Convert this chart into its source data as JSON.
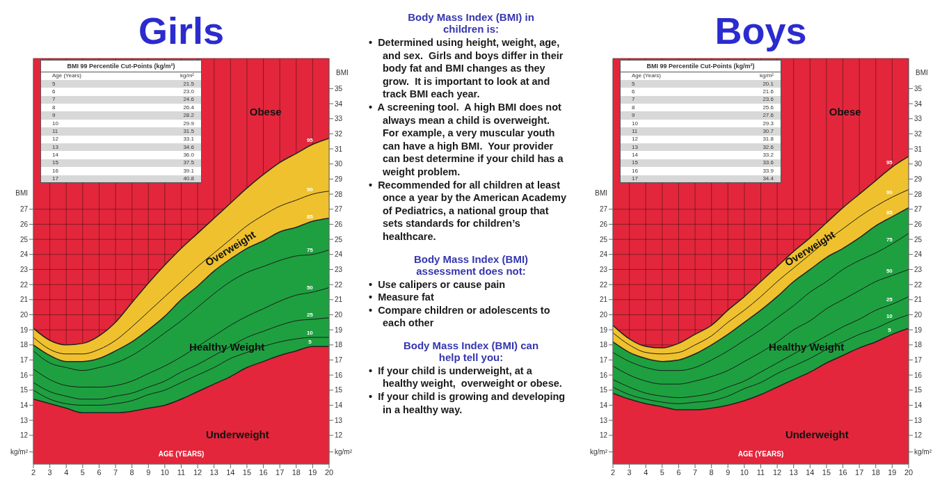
{
  "chart_data": [
    {
      "type": "area",
      "title": "Girls",
      "xlabel": "AGE (YEARS)",
      "ylabel": "BMI",
      "y2label": "BMI",
      "x": [
        2,
        3,
        4,
        5,
        6,
        7,
        8,
        9,
        10,
        11,
        12,
        13,
        14,
        15,
        16,
        17,
        18,
        19,
        20
      ],
      "series": [
        {
          "name": "95",
          "type": "area",
          "color": "#efc12e",
          "values": [
            19.1,
            18.3,
            18.0,
            18.1,
            18.6,
            19.5,
            20.8,
            22.1,
            23.3,
            24.4,
            25.4,
            26.4,
            27.4,
            28.4,
            29.3,
            30.1,
            30.7,
            31.3,
            31.7
          ]
        },
        {
          "name": "90",
          "type": "line",
          "color": "#1b1b1b",
          "values": [
            18.5,
            17.7,
            17.4,
            17.4,
            17.7,
            18.3,
            19.2,
            20.2,
            21.2,
            22.2,
            23.2,
            24.1,
            25.0,
            25.9,
            26.6,
            27.2,
            27.6,
            28.0,
            28.2
          ]
        },
        {
          "name": "85",
          "type": "area",
          "color": "#1ea040",
          "values": [
            18.0,
            17.3,
            16.9,
            16.9,
            17.1,
            17.6,
            18.2,
            19.0,
            19.9,
            21.0,
            21.9,
            22.9,
            23.7,
            24.4,
            24.9,
            25.5,
            25.8,
            26.2,
            26.4
          ]
        },
        {
          "name": "75",
          "type": "line",
          "color": "#1b1b1b",
          "values": [
            17.6,
            16.8,
            16.5,
            16.3,
            16.5,
            16.8,
            17.3,
            18.0,
            18.8,
            19.6,
            20.5,
            21.4,
            22.2,
            22.8,
            23.2,
            23.6,
            23.9,
            24.0,
            24.3
          ]
        },
        {
          "name": "50",
          "type": "line",
          "color": "#1b1b1b",
          "values": [
            16.4,
            15.7,
            15.3,
            15.2,
            15.2,
            15.3,
            15.6,
            16.1,
            16.6,
            17.2,
            17.9,
            18.6,
            19.3,
            19.9,
            20.4,
            20.9,
            21.3,
            21.5,
            21.8
          ]
        },
        {
          "name": "25",
          "type": "line",
          "color": "#1b1b1b",
          "values": [
            15.5,
            14.9,
            14.6,
            14.4,
            14.4,
            14.6,
            14.8,
            15.2,
            15.6,
            16.2,
            16.7,
            17.3,
            17.9,
            18.5,
            18.9,
            19.3,
            19.6,
            19.7,
            19.8
          ]
        },
        {
          "name": "10",
          "type": "line",
          "color": "#1b1b1b",
          "values": [
            15.0,
            14.4,
            14.1,
            14.0,
            14.0,
            14.1,
            14.3,
            14.7,
            15.0,
            15.5,
            16.0,
            16.5,
            17.1,
            17.5,
            17.9,
            18.2,
            18.4,
            18.5,
            18.5
          ]
        },
        {
          "name": "5",
          "type": "area",
          "color": "#e3263b",
          "values": [
            14.4,
            14.1,
            13.8,
            13.5,
            13.5,
            13.5,
            13.6,
            13.8,
            14.0,
            14.4,
            14.9,
            15.4,
            15.9,
            16.5,
            16.9,
            17.3,
            17.6,
            17.9,
            17.9
          ]
        }
      ],
      "xlim": [
        2,
        20
      ],
      "xticks": [
        2,
        3,
        4,
        5,
        6,
        7,
        8,
        9,
        10,
        11,
        12,
        13,
        14,
        15,
        16,
        17,
        18,
        19,
        20
      ],
      "ylim": [
        10.1,
        37
      ],
      "yticks": [
        {
          "value": 10.9,
          "label": "kg/m²"
        },
        12,
        13,
        14,
        15,
        16,
        17,
        18,
        19,
        20,
        21,
        22,
        23,
        24,
        25,
        26,
        27
      ],
      "y2lim": [
        10.1,
        37
      ],
      "y2ticks": [
        {
          "value": 10.9,
          "label": "kg/m²"
        },
        12,
        13,
        14,
        15,
        16,
        17,
        18,
        19,
        20,
        21,
        22,
        23,
        24,
        25,
        26,
        27,
        28,
        29,
        30,
        31,
        32,
        33,
        34,
        35
      ],
      "grid": true,
      "legend": false,
      "annotations": [
        "Obese",
        "Overweight",
        "Healthy Weight",
        "Underweight",
        "BMI 99 Percentile Cut-Points (kg/m²)",
        "Age (Years)",
        "kg/m²",
        "5",
        "21.5",
        "6",
        "23.0",
        "7",
        "24.6",
        "8",
        "26.4",
        "9",
        "28.2",
        "10",
        "29.9",
        "11",
        "31.5",
        "12",
        "33.1",
        "13",
        "34.6",
        "14",
        "36.0",
        "15",
        "37.5",
        "16",
        "39.1",
        "17",
        "40.8"
      ]
    },
    {
      "type": "other",
      "title": "Body Mass Index (BMI) in children is:",
      "annotations": [
        "•  Determined using height, weight, age, and sex.  Girls and boys differ in their body fat and BMI changes as they grow.  It is important to look at and track BMI each year.",
        "•  A screening tool.  A high BMI does not always mean a child is overweight.  For example, a very muscular youth can have a high BMI.  Your provider can best determine if your child has a weight problem.",
        "•  Recommended for all children at least once a year by the American Academy of Pediatrics, a national group that sets standards for children’s healthcare."
      ]
    },
    {
      "type": "other",
      "title": "Body Mass Index (BMI) assessment does not:",
      "annotations": [
        "•  Use calipers or cause pain",
        "•  Measure fat",
        "•  Compare children or adolescents to each other"
      ]
    },
    {
      "type": "other",
      "title": "Body Mass Index (BMI) can help tell you:",
      "annotations": [
        "•  If your child is underweight, at a healthy weight,  overweight or obese.",
        "•  If your child is growing and developing in a healthy way."
      ]
    },
    {
      "type": "area",
      "title": "Boys",
      "xlabel": "AGE (YEARS)",
      "ylabel": "BMI",
      "y2label": "BMI",
      "x": [
        2,
        3,
        4,
        5,
        6,
        7,
        8,
        9,
        10,
        11,
        12,
        13,
        14,
        15,
        16,
        17,
        18,
        19,
        20
      ],
      "series": [
        {
          "name": "95",
          "type": "area",
          "color": "#efc12e",
          "values": [
            19.3,
            18.4,
            17.9,
            17.8,
            18.1,
            18.7,
            19.3,
            20.3,
            21.2,
            22.2,
            23.2,
            24.2,
            25.1,
            26.1,
            27.1,
            28.0,
            28.9,
            29.8,
            30.5
          ]
        },
        {
          "name": "90",
          "type": "line",
          "color": "#1b1b1b",
          "values": [
            18.8,
            18.0,
            17.5,
            17.4,
            17.5,
            18.0,
            18.6,
            19.5,
            20.3,
            21.2,
            22.2,
            23.1,
            24.0,
            24.9,
            25.7,
            26.5,
            27.2,
            27.8,
            28.3
          ]
        },
        {
          "name": "85",
          "type": "area",
          "color": "#1ea040",
          "values": [
            18.2,
            17.5,
            17.1,
            16.9,
            17.0,
            17.4,
            18.0,
            18.7,
            19.5,
            20.3,
            21.2,
            22.2,
            23.0,
            23.8,
            24.4,
            25.1,
            25.9,
            26.5,
            27.1
          ]
        },
        {
          "name": "75",
          "type": "line",
          "color": "#1b1b1b",
          "values": [
            17.5,
            16.9,
            16.5,
            16.3,
            16.3,
            16.5,
            17.0,
            17.6,
            18.3,
            19.0,
            19.8,
            20.6,
            21.5,
            22.2,
            23.0,
            23.6,
            24.1,
            24.7,
            25.4
          ]
        },
        {
          "name": "50",
          "type": "line",
          "color": "#1b1b1b",
          "values": [
            16.6,
            16.0,
            15.6,
            15.4,
            15.4,
            15.6,
            15.9,
            16.3,
            16.9,
            17.5,
            18.2,
            19.0,
            19.6,
            20.4,
            21.0,
            21.6,
            22.2,
            22.6,
            23.0
          ]
        },
        {
          "name": "25",
          "type": "line",
          "color": "#1b1b1b",
          "values": [
            15.7,
            15.2,
            14.8,
            14.6,
            14.5,
            14.6,
            14.8,
            15.2,
            15.6,
            16.2,
            16.8,
            17.4,
            18.0,
            18.6,
            19.2,
            19.7,
            20.3,
            20.7,
            21.2
          ]
        },
        {
          "name": "10",
          "type": "line",
          "color": "#1b1b1b",
          "values": [
            15.2,
            14.7,
            14.4,
            14.2,
            14.1,
            14.2,
            14.3,
            14.6,
            15.1,
            15.5,
            16.1,
            16.6,
            17.1,
            17.7,
            18.2,
            18.7,
            19.1,
            19.6,
            20.0
          ]
        },
        {
          "name": "5",
          "type": "area",
          "color": "#e3263b",
          "values": [
            14.8,
            14.4,
            14.1,
            13.9,
            13.7,
            13.7,
            13.8,
            14.0,
            14.3,
            14.7,
            15.2,
            15.7,
            16.2,
            16.8,
            17.3,
            17.8,
            18.2,
            18.7,
            19.1
          ]
        }
      ],
      "xlim": [
        2,
        20
      ],
      "xticks": [
        2,
        3,
        4,
        5,
        6,
        7,
        8,
        9,
        10,
        11,
        12,
        13,
        14,
        15,
        16,
        17,
        18,
        19,
        20
      ],
      "ylim": [
        10.1,
        37
      ],
      "yticks": [
        {
          "value": 10.9,
          "label": "kg/m²"
        },
        12,
        13,
        14,
        15,
        16,
        17,
        18,
        19,
        20,
        21,
        22,
        23,
        24,
        25,
        26,
        27
      ],
      "y2lim": [
        10.1,
        37
      ],
      "y2ticks": [
        {
          "value": 10.9,
          "label": "kg/m²"
        },
        12,
        13,
        14,
        15,
        16,
        17,
        18,
        19,
        20,
        21,
        22,
        23,
        24,
        25,
        26,
        27,
        28,
        29,
        30,
        31,
        32,
        33,
        34,
        35
      ],
      "grid": true,
      "legend": false,
      "annotations": [
        "Obese",
        "Overweight",
        "Healthy Weight",
        "Underweight",
        "BMI 99 Percentile Cut-Points (kg/m²)",
        "Age (Years)",
        "kg/m²",
        "5",
        "20.1",
        "6",
        "21.6",
        "7",
        "23.6",
        "8",
        "25.6",
        "9",
        "27.6",
        "10",
        "29.3",
        "11",
        "30.7",
        "12",
        "31.8",
        "13",
        "32.6",
        "14",
        "33.2",
        "15",
        "33.6",
        "16",
        "33.9",
        "17",
        "34.4"
      ]
    }
  ]
}
